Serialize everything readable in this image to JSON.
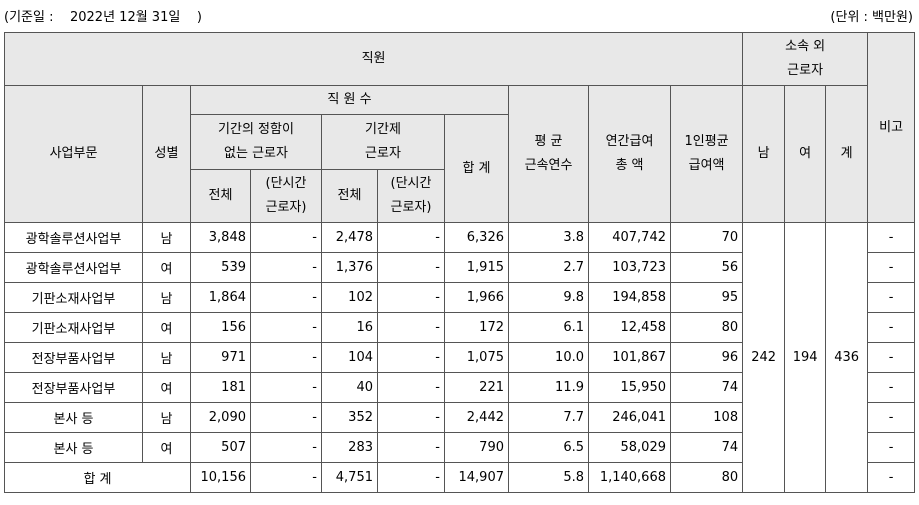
{
  "header": {
    "base_date": "(기준일 :    2022년 12월 31일    )",
    "unit": "(단위 : 백만원)"
  },
  "table": {
    "h_employees": "직원",
    "h_outside": "소속 외\n근로자",
    "h_note": "비고",
    "h_division": "사업부문",
    "h_gender": "성별",
    "h_headcount": "직 원 수",
    "h_indefinite": "기간의 정함이\n없는 근로자",
    "h_fixed": "기간제\n근로자",
    "h_total": "합 계",
    "h_tenure": "평 균\n근속연수",
    "h_annual_pay": "연간급여\n총 액",
    "h_avg_pay": "1인평균\n급여액",
    "h_male": "남",
    "h_female": "여",
    "h_sum": "계",
    "h_all1": "전체",
    "h_part1": "(단시간\n근로자)",
    "h_all2": "전체",
    "h_part2": "(단시간\n근로자)",
    "rows": [
      {
        "division": "광학솔루션사업부",
        "gender": "남",
        "indef": "3,848",
        "indef_part": "-",
        "fixed": "2,478",
        "fixed_part": "-",
        "total": "6,326",
        "tenure": "3.8",
        "pay": "407,742",
        "avg": "70",
        "note": "-"
      },
      {
        "division": "광학솔루션사업부",
        "gender": "여",
        "indef": "539",
        "indef_part": "-",
        "fixed": "1,376",
        "fixed_part": "-",
        "total": "1,915",
        "tenure": "2.7",
        "pay": "103,723",
        "avg": "56",
        "note": "-"
      },
      {
        "division": "기판소재사업부",
        "gender": "남",
        "indef": "1,864",
        "indef_part": "-",
        "fixed": "102",
        "fixed_part": "-",
        "total": "1,966",
        "tenure": "9.8",
        "pay": "194,858",
        "avg": "95",
        "note": "-"
      },
      {
        "division": "기판소재사업부",
        "gender": "여",
        "indef": "156",
        "indef_part": "-",
        "fixed": "16",
        "fixed_part": "-",
        "total": "172",
        "tenure": "6.1",
        "pay": "12,458",
        "avg": "80",
        "note": "-"
      },
      {
        "division": "전장부품사업부",
        "gender": "남",
        "indef": "971",
        "indef_part": "-",
        "fixed": "104",
        "fixed_part": "-",
        "total": "1,075",
        "tenure": "10.0",
        "pay": "101,867",
        "avg": "96",
        "note": "-"
      },
      {
        "division": "전장부품사업부",
        "gender": "여",
        "indef": "181",
        "indef_part": "-",
        "fixed": "40",
        "fixed_part": "-",
        "total": "221",
        "tenure": "11.9",
        "pay": "15,950",
        "avg": "74",
        "note": "-"
      },
      {
        "division": "본사 등",
        "gender": "남",
        "indef": "2,090",
        "indef_part": "-",
        "fixed": "352",
        "fixed_part": "-",
        "total": "2,442",
        "tenure": "7.7",
        "pay": "246,041",
        "avg": "108",
        "note": "-"
      },
      {
        "division": "본사 등",
        "gender": "여",
        "indef": "507",
        "indef_part": "-",
        "fixed": "283",
        "fixed_part": "-",
        "total": "790",
        "tenure": "6.5",
        "pay": "58,029",
        "avg": "74",
        "note": "-"
      }
    ],
    "outside": {
      "male": "242",
      "female": "194",
      "sum": "436"
    },
    "total_row": {
      "label": "합 계",
      "indef": "10,156",
      "indef_part": "-",
      "fixed": "4,751",
      "fixed_part": "-",
      "total": "14,907",
      "tenure": "5.8",
      "pay": "1,140,668",
      "avg": "80",
      "note": "-"
    }
  }
}
